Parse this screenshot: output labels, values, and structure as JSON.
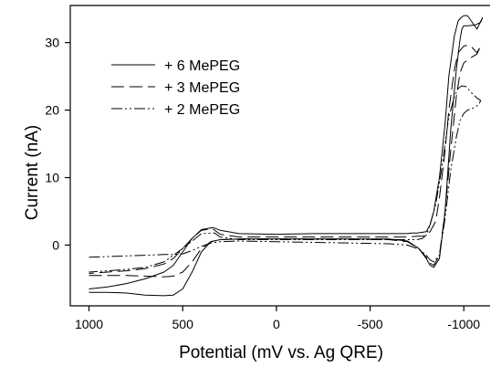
{
  "chart_data": {
    "type": "line",
    "title": "",
    "xlabel": "Potential (mV vs. Ag QRE)",
    "ylabel": "Current (nA)",
    "xlim": [
      1100,
      -1150
    ],
    "ylim": [
      -9,
      35.5
    ],
    "x_reversed": true,
    "x_ticks": [
      1000,
      500,
      0,
      -500,
      -1000
    ],
    "y_ticks": [
      0,
      10,
      20,
      30
    ],
    "grid": false,
    "legend_position": "upper-left",
    "series": [
      {
        "name": "+ 6 MePEG",
        "dash": "solid",
        "x": [
          1000,
          900,
          800,
          700,
          600,
          550,
          500,
          450,
          400,
          350,
          300,
          200,
          0,
          -200,
          -400,
          -600,
          -700,
          -760,
          -800,
          -820,
          -840,
          -870,
          -900,
          -930,
          -960,
          -980,
          -990,
          -1000,
          -1020,
          -1060,
          -1090,
          -1100,
          -1070,
          -1040,
          -1020,
          -1000,
          -985,
          -970,
          -950,
          -920,
          -900,
          -870,
          -840,
          -820,
          -800,
          -780,
          -750,
          -720,
          -700,
          -600,
          -400,
          -200,
          0,
          200,
          300,
          340,
          400,
          450,
          500,
          550,
          600,
          700,
          800,
          900,
          1000
        ],
        "y": [
          -7,
          -7,
          -7.1,
          -7.4,
          -7.5,
          -7.4,
          -6.5,
          -4,
          -1,
          0.5,
          0.8,
          0.9,
          0.9,
          0.9,
          0.9,
          0.9,
          0.6,
          -0.5,
          -2,
          -3,
          -3.3,
          -2,
          5,
          17,
          26,
          30.5,
          32,
          32.5,
          32.5,
          32.6,
          33,
          33.7,
          32,
          33.2,
          34,
          34,
          33.7,
          33.2,
          31,
          25,
          18,
          10,
          5,
          3,
          2,
          1.9,
          1.8,
          1.8,
          1.7,
          1.7,
          1.7,
          1.7,
          1.6,
          1.7,
          2.2,
          2.6,
          2.3,
          1,
          -1,
          -3,
          -4,
          -5,
          -5.7,
          -6.2,
          -6.5
        ]
      },
      {
        "name": "+ 3 MePEG",
        "dash": "dashed",
        "x": [
          1000,
          900,
          800,
          700,
          600,
          550,
          500,
          450,
          400,
          350,
          300,
          200,
          0,
          -200,
          -400,
          -600,
          -700,
          -760,
          -800,
          -820,
          -840,
          -870,
          -900,
          -930,
          -960,
          -980,
          -1000,
          -1040,
          -1070,
          -1090,
          -1070,
          -1040,
          -1020,
          -1000,
          -970,
          -950,
          -920,
          -900,
          -870,
          -850,
          -820,
          -800,
          -780,
          -750,
          -700,
          -600,
          -400,
          -200,
          0,
          200,
          300,
          340,
          400,
          450,
          500,
          550,
          600,
          700,
          800,
          900,
          1000
        ],
        "y": [
          -4.5,
          -4.5,
          -4.5,
          -4.6,
          -4.7,
          -4.6,
          -4,
          -2.5,
          -0.5,
          0.5,
          0.8,
          0.9,
          0.9,
          0.9,
          0.9,
          0.8,
          0.5,
          -0.5,
          -1.8,
          -2.7,
          -3,
          -1.5,
          5,
          14,
          22,
          25.5,
          27,
          27.8,
          28.3,
          29.5,
          28.5,
          29.4,
          29.6,
          29.5,
          28.5,
          26,
          20,
          14,
          7,
          3.5,
          2,
          1.5,
          1.3,
          1.3,
          1.2,
          1.2,
          1.2,
          1.2,
          1.2,
          1.2,
          1.6,
          2.4,
          2.2,
          1,
          -0.5,
          -2,
          -2.8,
          -3.5,
          -3.8,
          -4,
          -4.2
        ]
      },
      {
        "name": "+ 2 MePEG",
        "dash": "dash-dot-dot",
        "x": [
          1000,
          900,
          800,
          700,
          600,
          550,
          500,
          450,
          400,
          350,
          300,
          200,
          0,
          -200,
          -400,
          -600,
          -700,
          -760,
          -800,
          -820,
          -840,
          -870,
          -900,
          -930,
          -960,
          -980,
          -1000,
          -1020,
          -1050,
          -1080,
          -1090,
          -1070,
          -1040,
          -1010,
          -990,
          -970,
          -950,
          -920,
          -900,
          -880,
          -850,
          -820,
          -800,
          -780,
          -750,
          -700,
          -600,
          -400,
          -200,
          0,
          200,
          300,
          330,
          400,
          450,
          500,
          550,
          600,
          700,
          800,
          900,
          1000
        ],
        "y": [
          -1.8,
          -1.7,
          -1.6,
          -1.5,
          -1.4,
          -1.4,
          -1.3,
          -0.8,
          -0.2,
          0.3,
          0.5,
          0.6,
          0.5,
          0.4,
          0.3,
          0.2,
          0,
          -0.6,
          -1.5,
          -2.2,
          -2.5,
          -1.5,
          4,
          11,
          16,
          18.5,
          19.5,
          20,
          20.3,
          20.8,
          21.4,
          21.8,
          22.6,
          23.5,
          23.6,
          23.2,
          22,
          19,
          15,
          11,
          6,
          3,
          1.5,
          1,
          0.8,
          0.8,
          0.8,
          0.8,
          0.8,
          0.8,
          0.8,
          1.2,
          1.8,
          1.7,
          0.6,
          -0.5,
          -1.5,
          -2.5,
          -3.3,
          -3.6,
          -3.8,
          -4
        ]
      }
    ]
  }
}
